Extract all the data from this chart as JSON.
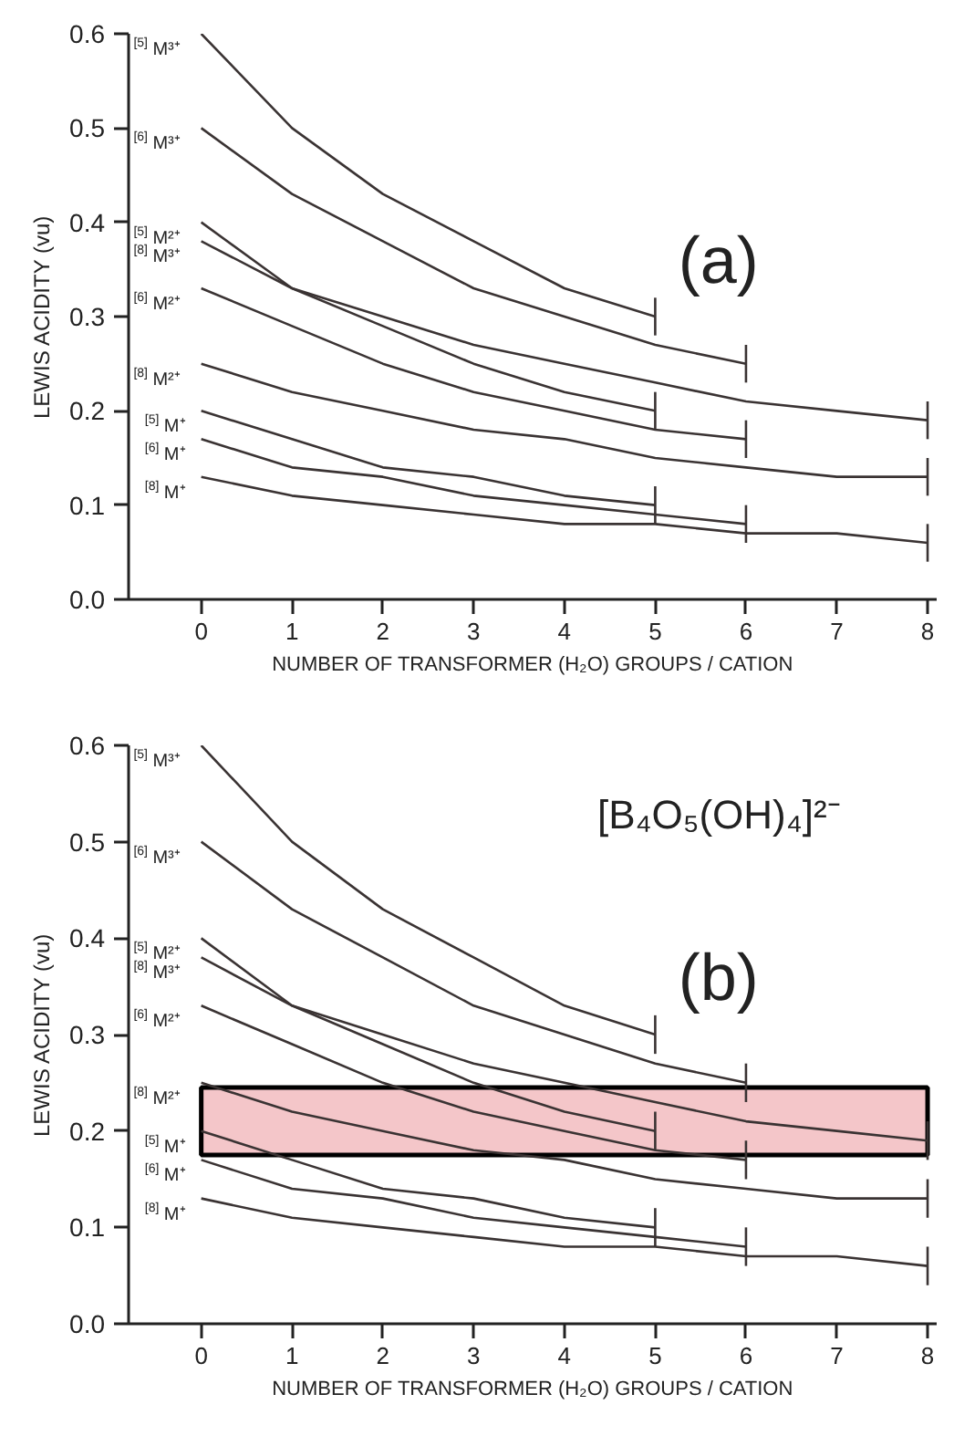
{
  "chart_data": [
    {
      "type": "line",
      "ylabel": "LEWIS ACIDITY (vu)",
      "xlabel": "NUMBER OF TRANSFORMER (H₂O) GROUPS / CATION",
      "annotations": [
        "(a)"
      ],
      "xlim": [
        -0.8,
        8.1
      ],
      "ylim": [
        0,
        0.6
      ],
      "xticks": [
        0,
        1,
        2,
        3,
        4,
        5,
        6,
        7,
        8
      ],
      "yticks": [
        {
          "value": 0,
          "label": "0.0"
        },
        0.1,
        0.2,
        0.3,
        0.4,
        0.5,
        0.6
      ],
      "grid": false,
      "series": [
        {
          "name": "$^{[5]}$M³⁺",
          "color": "#3a3333",
          "x": [
            0,
            1,
            2,
            3,
            4,
            5
          ],
          "values": [
            0.6,
            0.5,
            0.43,
            0.38,
            0.33,
            0.3
          ],
          "errors": [
            null,
            null,
            null,
            null,
            null,
            0.02
          ]
        },
        {
          "name": "$^{[6]}$M³⁺",
          "color": "#3a3333",
          "x": [
            0,
            1,
            2,
            3,
            4,
            5,
            6
          ],
          "values": [
            0.5,
            0.43,
            0.38,
            0.33,
            0.3,
            0.27,
            0.25
          ],
          "errors": [
            null,
            null,
            null,
            null,
            null,
            null,
            0.02
          ]
        },
        {
          "name": "$^{[5]}$M²⁺",
          "color": "#3a3333",
          "x": [
            0,
            1,
            2,
            3,
            4,
            5
          ],
          "values": [
            0.4,
            0.33,
            0.29,
            0.25,
            0.22,
            0.2
          ],
          "errors": [
            null,
            null,
            null,
            null,
            null,
            0.02
          ]
        },
        {
          "name": "$^{[8]}$M³⁺",
          "color": "#3a3333",
          "x": [
            0,
            1,
            2,
            3,
            4,
            5,
            6,
            7,
            8
          ],
          "values": [
            0.38,
            0.33,
            0.3,
            0.27,
            0.25,
            0.23,
            0.21,
            0.2,
            0.19
          ],
          "errors": [
            null,
            null,
            null,
            null,
            null,
            null,
            null,
            null,
            0.02
          ]
        },
        {
          "name": "$^{[6]}$M²⁺",
          "color": "#3a3333",
          "x": [
            0,
            1,
            2,
            3,
            4,
            5,
            6
          ],
          "values": [
            0.33,
            0.29,
            0.25,
            0.22,
            0.2,
            0.18,
            0.17
          ],
          "errors": [
            null,
            null,
            null,
            null,
            null,
            null,
            0.02
          ]
        },
        {
          "name": "$^{[8]}$M²⁺",
          "color": "#3a3333",
          "x": [
            0,
            1,
            2,
            3,
            4,
            5,
            6,
            7,
            8
          ],
          "values": [
            0.25,
            0.22,
            0.2,
            0.18,
            0.17,
            0.15,
            0.14,
            0.13,
            0.13
          ],
          "errors": [
            null,
            null,
            null,
            null,
            null,
            null,
            null,
            null,
            0.02
          ]
        },
        {
          "name": "$^{[5]}$M⁺",
          "color": "#3a3333",
          "x": [
            0,
            1,
            2,
            3,
            4,
            5
          ],
          "values": [
            0.2,
            0.17,
            0.14,
            0.13,
            0.11,
            0.1
          ],
          "errors": [
            null,
            null,
            null,
            null,
            null,
            0.02
          ]
        },
        {
          "name": "$^{[6]}$M⁺",
          "color": "#3a3333",
          "x": [
            0,
            1,
            2,
            3,
            4,
            5,
            6
          ],
          "values": [
            0.17,
            0.14,
            0.13,
            0.11,
            0.1,
            0.09,
            0.08
          ],
          "errors": [
            null,
            null,
            null,
            null,
            null,
            null,
            0.02
          ]
        },
        {
          "name": "$^{[8]}$M⁺",
          "color": "#3a3333",
          "x": [
            0,
            1,
            2,
            3,
            4,
            5,
            6,
            7,
            8
          ],
          "values": [
            0.13,
            0.11,
            0.1,
            0.09,
            0.08,
            0.08,
            0.07,
            0.07,
            0.06
          ],
          "errors": [
            null,
            null,
            null,
            null,
            null,
            null,
            null,
            null,
            0.02
          ]
        }
      ]
    },
    {
      "type": "line",
      "ylabel": "LEWIS ACIDITY (vu)",
      "xlabel": "NUMBER OF TRANSFORMER (H₂O) GROUPS / CATION",
      "annotations": [
        "[B₄O₅(OH)₄]²⁻",
        "(b)"
      ],
      "xlim": [
        -0.8,
        8.1
      ],
      "ylim": [
        0,
        0.6
      ],
      "xticks": [
        0,
        1,
        2,
        3,
        4,
        5,
        6,
        7,
        8
      ],
      "yticks": [
        {
          "value": 0,
          "label": "0.0"
        },
        0.1,
        0.2,
        0.3,
        0.4,
        0.5,
        0.6
      ],
      "grid": false,
      "bands": [
        {
          "axis": "y",
          "from": 0.175,
          "to": 0.245,
          "color": "#f4c6c9"
        }
      ],
      "series": [
        {
          "name": "$^{[5]}$M³⁺",
          "color": "#3a3333",
          "x": [
            0,
            1,
            2,
            3,
            4,
            5
          ],
          "values": [
            0.6,
            0.5,
            0.43,
            0.38,
            0.33,
            0.3
          ],
          "errors": [
            null,
            null,
            null,
            null,
            null,
            0.02
          ]
        },
        {
          "name": "$^{[6]}$M³⁺",
          "color": "#3a3333",
          "x": [
            0,
            1,
            2,
            3,
            4,
            5,
            6
          ],
          "values": [
            0.5,
            0.43,
            0.38,
            0.33,
            0.3,
            0.27,
            0.25
          ],
          "errors": [
            null,
            null,
            null,
            null,
            null,
            null,
            0.02
          ]
        },
        {
          "name": "$^{[5]}$M²⁺",
          "color": "#3a3333",
          "x": [
            0,
            1,
            2,
            3,
            4,
            5
          ],
          "values": [
            0.4,
            0.33,
            0.29,
            0.25,
            0.22,
            0.2
          ],
          "errors": [
            null,
            null,
            null,
            null,
            null,
            0.02
          ]
        },
        {
          "name": "$^{[8]}$M³⁺",
          "color": "#3a3333",
          "x": [
            0,
            1,
            2,
            3,
            4,
            5,
            6,
            7,
            8
          ],
          "values": [
            0.38,
            0.33,
            0.3,
            0.27,
            0.25,
            0.23,
            0.21,
            0.2,
            0.19
          ],
          "errors": [
            null,
            null,
            null,
            null,
            null,
            null,
            null,
            null,
            0.02
          ]
        },
        {
          "name": "$^{[6]}$M²⁺",
          "color": "#3a3333",
          "x": [
            0,
            1,
            2,
            3,
            4,
            5,
            6
          ],
          "values": [
            0.33,
            0.29,
            0.25,
            0.22,
            0.2,
            0.18,
            0.17
          ],
          "errors": [
            null,
            null,
            null,
            null,
            null,
            null,
            0.02
          ]
        },
        {
          "name": "$^{[8]}$M²⁺",
          "color": "#3a3333",
          "x": [
            0,
            1,
            2,
            3,
            4,
            5,
            6,
            7,
            8
          ],
          "values": [
            0.25,
            0.22,
            0.2,
            0.18,
            0.17,
            0.15,
            0.14,
            0.13,
            0.13
          ],
          "errors": [
            null,
            null,
            null,
            null,
            null,
            null,
            null,
            null,
            0.02
          ]
        },
        {
          "name": "$^{[5]}$M⁺",
          "color": "#3a3333",
          "x": [
            0,
            1,
            2,
            3,
            4,
            5
          ],
          "values": [
            0.2,
            0.17,
            0.14,
            0.13,
            0.11,
            0.1
          ],
          "errors": [
            null,
            null,
            null,
            null,
            null,
            0.02
          ]
        },
        {
          "name": "$^{[6]}$M⁺",
          "color": "#3a3333",
          "x": [
            0,
            1,
            2,
            3,
            4,
            5,
            6
          ],
          "values": [
            0.17,
            0.14,
            0.13,
            0.11,
            0.1,
            0.09,
            0.08
          ],
          "errors": [
            null,
            null,
            null,
            null,
            null,
            null,
            0.02
          ]
        },
        {
          "name": "$^{[8]}$M⁺",
          "color": "#3a3333",
          "x": [
            0,
            1,
            2,
            3,
            4,
            5,
            6,
            7,
            8
          ],
          "values": [
            0.13,
            0.11,
            0.1,
            0.09,
            0.08,
            0.08,
            0.07,
            0.07,
            0.06
          ],
          "errors": [
            null,
            null,
            null,
            null,
            null,
            null,
            null,
            null,
            0.02
          ]
        }
      ]
    }
  ]
}
